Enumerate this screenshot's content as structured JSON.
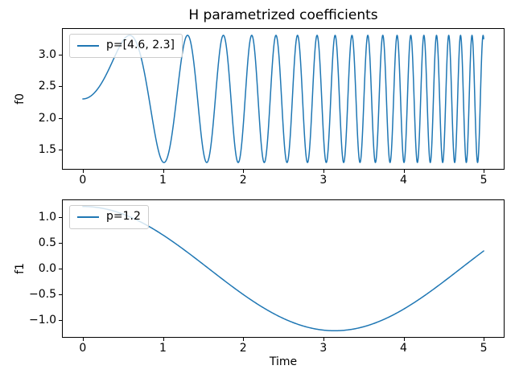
{
  "figure": {
    "title": "H parametrized coefficients",
    "background": "#ffffff",
    "spine_color": "#000000",
    "accent_line_color": "#1f77b4"
  },
  "chart_data": [
    {
      "type": "line",
      "title": "H parametrized coefficients",
      "xlabel": "",
      "ylabel": "f0",
      "xlim": [
        -0.25,
        5.25
      ],
      "ylim": [
        1.2,
        3.4
      ],
      "grid": false,
      "xticks": [
        {
          "label": "0",
          "v": 0
        },
        {
          "label": "1",
          "v": 1
        },
        {
          "label": "2",
          "v": 2
        },
        {
          "label": "3",
          "v": 3
        },
        {
          "label": "4",
          "v": 4
        },
        {
          "label": "5",
          "v": 5
        }
      ],
      "yticks": [
        {
          "label": "1.5",
          "v": 1.5
        },
        {
          "label": "2.0",
          "v": 2.0
        },
        {
          "label": "2.5",
          "v": 2.5
        },
        {
          "label": "3.0",
          "v": 3.0
        }
      ],
      "legend": {
        "label": "p=[4.6, 2.3]",
        "loc": "upper left"
      },
      "series": [
        {
          "name": "p=[4.6, 2.3]",
          "color": "#1f77b4",
          "linewidth": 1.5,
          "kind": "chirp_sin",
          "model": "f0(t) = 2.3 + sin(4.6 * t^2)",
          "params": {
            "rate": 4.6,
            "offset": 2.3,
            "amp": 1.0
          },
          "x_range": [
            0,
            5
          ],
          "samples": 2500,
          "y_range": [
            1.3,
            3.3
          ],
          "endpoints": [
            [
              0,
              2.3
            ],
            [
              5.0,
              3.25
            ]
          ],
          "maxima_t": [
            0.58,
            1.31,
            1.75,
            2.11,
            2.41,
            2.68,
            2.92,
            3.15,
            3.36,
            3.55,
            3.74,
            3.92,
            4.09,
            4.25,
            4.41,
            4.56,
            4.71,
            4.85,
            4.99
          ],
          "minima_t": [
            1.01,
            1.55,
            1.94,
            2.26,
            2.55,
            2.8,
            3.04,
            3.25,
            3.45,
            3.64,
            3.82,
            3.99,
            4.16,
            4.32,
            4.47,
            4.61,
            4.76,
            4.9
          ]
        }
      ]
    },
    {
      "type": "line",
      "title": "",
      "xlabel": "Time",
      "ylabel": "f1",
      "xlim": [
        -0.25,
        5.25
      ],
      "ylim": [
        -1.32,
        1.32
      ],
      "grid": false,
      "xticks": [
        {
          "label": "0",
          "v": 0
        },
        {
          "label": "1",
          "v": 1
        },
        {
          "label": "2",
          "v": 2
        },
        {
          "label": "3",
          "v": 3
        },
        {
          "label": "4",
          "v": 4
        },
        {
          "label": "5",
          "v": 5
        }
      ],
      "yticks": [
        {
          "label": "−1.0",
          "v": -1.0
        },
        {
          "label": "−0.5",
          "v": -0.5
        },
        {
          "label": "0.0",
          "v": 0.0
        },
        {
          "label": "0.5",
          "v": 0.5
        },
        {
          "label": "1.0",
          "v": 1.0
        }
      ],
      "legend": {
        "label": "p=1.2",
        "loc": "upper left"
      },
      "series": [
        {
          "name": "p=1.2",
          "color": "#1f77b4",
          "linewidth": 1.5,
          "kind": "cos",
          "model": "f1(t) = 1.2 * cos(t)",
          "params": {
            "amp": 1.2
          },
          "x_range": [
            0,
            5
          ],
          "samples": 500,
          "y_range": [
            -1.2,
            1.2
          ],
          "sample_points": [
            [
              0.0,
              1.2
            ],
            [
              0.5,
              1.053
            ],
            [
              1.0,
              0.648
            ],
            [
              1.5,
              0.085
            ],
            [
              2.0,
              -0.499
            ],
            [
              2.5,
              -0.961
            ],
            [
              3.0,
              -1.188
            ],
            [
              3.142,
              -1.2
            ],
            [
              3.5,
              -1.124
            ],
            [
              4.0,
              -0.784
            ],
            [
              4.5,
              -0.253
            ],
            [
              5.0,
              0.34
            ]
          ]
        }
      ]
    }
  ]
}
